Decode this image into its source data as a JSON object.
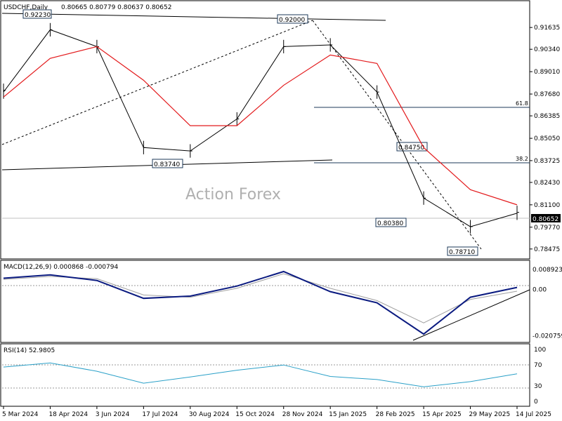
{
  "header": {
    "symbol_line": "USDCHF,Daily",
    "ohlc": "0.80665 0.80779 0.80637 0.80652"
  },
  "watermark": "Action Forex",
  "colors": {
    "candles": "#000000",
    "sma": "#e31a1c",
    "macd_line": "#0a1a80",
    "macd_signal": "#a0a0a0",
    "rsi_line": "#2aa0c8",
    "trendlines": "#000000",
    "fib_lines": "#1c3a5a",
    "current_price_label_bg": "#000000"
  },
  "chart_data": [
    {
      "type": "line",
      "panel": "price",
      "title": "USDCHF,Daily",
      "x_axis": {
        "tick_labels": [
          "5 Mar 2024",
          "18 Apr 2024",
          "3 Jun 2024",
          "17 Jul 2024",
          "30 Aug 2024",
          "15 Oct 2024",
          "28 Nov 2024",
          "15 Jan 2025",
          "28 Feb 2025",
          "15 Apr 2025",
          "29 May 2025",
          "14 Jul 2025"
        ]
      },
      "y_axis": {
        "tick_labels": [
          "0.91635",
          "0.90340",
          "0.89010",
          "0.87680",
          "0.86385",
          "0.85050",
          "0.83725",
          "0.82430",
          "0.81100",
          "0.79770",
          "0.78475"
        ],
        "ylim": [
          0.7826,
          0.9235
        ]
      },
      "current_price": "0.80652",
      "series": [
        {
          "label": "price",
          "style": "bars",
          "x": [
            "5 Mar 2024",
            "18 Apr 2024",
            "3 Jun 2024",
            "17 Jul 2024",
            "30 Aug 2024",
            "15 Oct 2024",
            "28 Nov 2024",
            "15 Jan 2025",
            "28 Feb 2025",
            "15 Apr 2025",
            "29 May 2025",
            "14 Jul 2025"
          ],
          "values": [
            0.878,
            0.915,
            0.905,
            0.845,
            0.843,
            0.862,
            0.905,
            0.906,
            0.878,
            0.815,
            0.798,
            0.806
          ],
          "close": [
            0.879,
            0.915,
            0.905,
            0.845,
            0.843,
            0.862,
            0.905,
            0.906,
            0.878,
            0.815,
            0.798,
            0.8065
          ]
        },
        {
          "label": "moving average",
          "x": [
            "5 Mar 2024",
            "18 Apr 2024",
            "3 Jun 2024",
            "17 Jul 2024",
            "30 Aug 2024",
            "15 Oct 2024",
            "28 Nov 2024",
            "15 Jan 2025",
            "28 Feb 2025",
            "15 Apr 2025",
            "29 May 2025",
            "14 Jul 2025"
          ],
          "values": [
            0.875,
            0.898,
            0.905,
            0.885,
            0.858,
            0.858,
            0.882,
            0.9,
            0.895,
            0.845,
            0.82,
            0.811
          ]
        }
      ],
      "annotations": [
        {
          "label": "0.92230",
          "x": "18 Apr 2024",
          "y": 0.9223
        },
        {
          "label": "0.92000",
          "x": "28 Nov 2024",
          "y": 0.92
        },
        {
          "label": "0.83740",
          "x": "30 Aug 2024",
          "y": 0.8374
        },
        {
          "label": "0.84750",
          "x": "28 Feb 2025",
          "y": 0.8475
        },
        {
          "label": "0.80380",
          "x": "28 Feb 2025",
          "y": 0.8038
        },
        {
          "label": "0.78710",
          "x": "29 May 2025",
          "y": 0.7871
        },
        {
          "label": "61.8",
          "x": "14 Jul 2025",
          "y": 0.8685
        },
        {
          "label": "38.2",
          "x": "14 Jul 2025",
          "y": 0.8385
        }
      ]
    },
    {
      "type": "line",
      "panel": "macd",
      "title": "MACD(12,26,9) 0.000868 -0.000794",
      "y_axis": {
        "tick_labels": [
          "0.008923",
          "0.00",
          "-0.020759"
        ],
        "ylim": [
          -0.0228,
          0.0102
        ]
      },
      "series": [
        {
          "label": "macd",
          "x": [
            "5 Mar 2024",
            "18 Apr 2024",
            "3 Jun 2024",
            "17 Jul 2024",
            "30 Aug 2024",
            "15 Oct 2024",
            "28 Nov 2024",
            "15 Jan 2025",
            "28 Feb 2025",
            "15 Apr 2025",
            "29 May 2025",
            "14 Jul 2025"
          ],
          "values": [
            0.005,
            0.0065,
            0.004,
            -0.004,
            -0.003,
            0.0015,
            0.008,
            -0.001,
            -0.006,
            -0.02,
            -0.0035,
            0.0009
          ]
        },
        {
          "label": "signal",
          "x": [
            "5 Mar 2024",
            "18 Apr 2024",
            "3 Jun 2024",
            "17 Jul 2024",
            "30 Aug 2024",
            "15 Oct 2024",
            "28 Nov 2024",
            "15 Jan 2025",
            "28 Feb 2025",
            "15 Apr 2025",
            "29 May 2025",
            "14 Jul 2025"
          ],
          "values": [
            0.0045,
            0.0058,
            0.0048,
            -0.0025,
            -0.0035,
            0.0005,
            0.007,
            0.0005,
            -0.005,
            -0.015,
            -0.0045,
            -0.0008
          ]
        }
      ]
    },
    {
      "type": "line",
      "panel": "rsi",
      "title": "RSI(14) 52.9805",
      "y_axis": {
        "tick_labels": [
          "100",
          "70",
          "30",
          "0"
        ],
        "ylim": [
          0,
          100
        ]
      },
      "series": [
        {
          "label": "rsi",
          "x": [
            "5 Mar 2024",
            "18 Apr 2024",
            "3 Jun 2024",
            "17 Jul 2024",
            "30 Aug 2024",
            "15 Oct 2024",
            "28 Nov 2024",
            "15 Jan 2025",
            "28 Feb 2025",
            "15 Apr 2025",
            "29 May 2025",
            "14 Jul 2025"
          ],
          "values": [
            66,
            74,
            58,
            35,
            47,
            60,
            70,
            48,
            42,
            28,
            38,
            52.98
          ]
        }
      ]
    }
  ]
}
